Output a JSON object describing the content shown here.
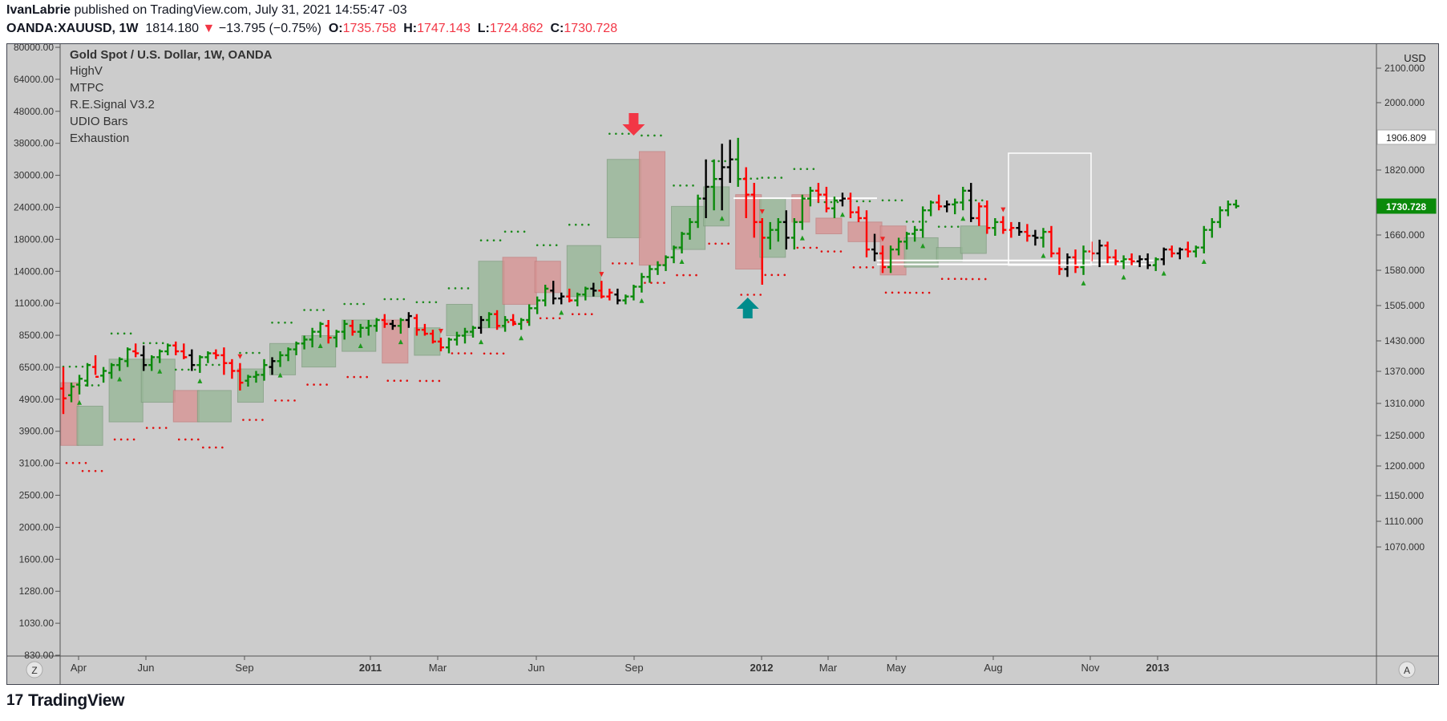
{
  "header": {
    "author": "IvanLabrie",
    "published_text": "published on TradingView.com, July 31, 2021 14:55:47 -03",
    "symbol": "OANDA:XAUUSD, 1W",
    "last_price": "1814.180",
    "change_arrow": "▼",
    "change": "−13.795 (−0.75%)",
    "o_label": "O:",
    "o_value": "1735.758",
    "h_label": "H:",
    "h_value": "1747.143",
    "l_label": "L:",
    "l_value": "1724.862",
    "c_label": "C:",
    "c_value": "1730.728"
  },
  "legend": {
    "title": "Gold Spot / U.S. Dollar, 1W, OANDA",
    "indicators": [
      "HighV",
      "MTPC",
      "R.E.Signal V3.2",
      "UDIO Bars",
      "Exhaustion"
    ]
  },
  "footer": {
    "brand": "TradingView",
    "brand_mark": "17"
  },
  "axis_buttons": {
    "left": "Z",
    "right": "A"
  },
  "colors": {
    "background": "#cccccc",
    "up": "#0a8a0a",
    "down": "#ff0000",
    "neutral": "#000000",
    "green_zone": "#98b898",
    "red_zone": "#d89494",
    "price_tag": "#0a8a0a",
    "sell_arrow": "#f23645",
    "buy_arrow": "#008c8c"
  },
  "chart_data": {
    "type": "ohlc",
    "title": "Gold Spot / U.S. Dollar, 1W, OANDA",
    "currency": "USD",
    "x_tick_labels": [
      "Apr",
      "Jun",
      "Sep",
      "2011",
      "Mar",
      "Jun",
      "Sep",
      "2012",
      "Mar",
      "May",
      "Aug",
      "Nov",
      "2013"
    ],
    "x_tick_bold": [
      "2011",
      "2012",
      "2013"
    ],
    "left_axis_labels": [
      "80000.00",
      "64000.00",
      "48000.00",
      "38000.00",
      "30000.00",
      "24000.00",
      "18000.00",
      "14000.00",
      "11000.00",
      "8500.00",
      "6500.00",
      "4900.00",
      "3900.00",
      "3100.00",
      "2500.00",
      "2000.00",
      "1600.00",
      "1280.00",
      "1030.00",
      "830.00"
    ],
    "right_axis_labels": [
      "2100.000",
      "2000.000",
      "1820.000",
      "1660.000",
      "1580.000",
      "1505.000",
      "1430.000",
      "1370.000",
      "1310.000",
      "1250.000",
      "1200.000",
      "1150.000",
      "1110.000",
      "1070.000"
    ],
    "price_tags": [
      {
        "label": "1906.809",
        "style": "white"
      },
      {
        "label": "1730.728",
        "style": "green"
      }
    ],
    "hlines": [
      {
        "y": 1751,
        "x_from": "2011-09",
        "x_to": "2012-01"
      },
      {
        "y": 1592,
        "x_from": "2012-01",
        "x_to": "2012-08"
      },
      {
        "y": 1582,
        "x_from": "2012-01",
        "x_to": "2012-08"
      }
    ],
    "bars": [
      [
        1265,
        1200,
        1320,
        1240,
        "d"
      ],
      [
        1248,
        1230,
        1280,
        1270,
        "u"
      ],
      [
        1275,
        1250,
        1300,
        1290,
        "u"
      ],
      [
        1285,
        1270,
        1330,
        1325,
        "u"
      ],
      [
        1320,
        1300,
        1350,
        1295,
        "d"
      ],
      [
        1298,
        1280,
        1320,
        1310,
        "u"
      ],
      [
        1305,
        1290,
        1330,
        1325,
        "u"
      ],
      [
        1325,
        1310,
        1345,
        1340,
        "u"
      ],
      [
        1335,
        1320,
        1370,
        1365,
        "u"
      ],
      [
        1360,
        1345,
        1380,
        1355,
        "d"
      ],
      [
        1350,
        1310,
        1375,
        1325,
        "n"
      ],
      [
        1325,
        1310,
        1350,
        1345,
        "u"
      ],
      [
        1345,
        1330,
        1365,
        1360,
        "u"
      ],
      [
        1360,
        1350,
        1380,
        1375,
        "u"
      ],
      [
        1375,
        1350,
        1385,
        1360,
        "d"
      ],
      [
        1360,
        1340,
        1380,
        1345,
        "d"
      ],
      [
        1350,
        1310,
        1365,
        1325,
        "n"
      ],
      [
        1325,
        1305,
        1350,
        1345,
        "u"
      ],
      [
        1345,
        1330,
        1360,
        1355,
        "u"
      ],
      [
        1355,
        1340,
        1365,
        1350,
        "d"
      ],
      [
        1350,
        1300,
        1370,
        1330,
        "d"
      ],
      [
        1330,
        1290,
        1340,
        1310,
        "d"
      ],
      [
        1310,
        1260,
        1330,
        1280,
        "d"
      ],
      [
        1285,
        1270,
        1300,
        1295,
        "u"
      ],
      [
        1295,
        1280,
        1310,
        1300,
        "u"
      ],
      [
        1300,
        1285,
        1340,
        1325,
        "u"
      ],
      [
        1320,
        1300,
        1345,
        1335,
        "n"
      ],
      [
        1335,
        1320,
        1360,
        1350,
        "u"
      ],
      [
        1350,
        1335,
        1370,
        1365,
        "u"
      ],
      [
        1365,
        1350,
        1385,
        1380,
        "u"
      ],
      [
        1380,
        1365,
        1400,
        1390,
        "u"
      ],
      [
        1390,
        1370,
        1420,
        1410,
        "u"
      ],
      [
        1410,
        1395,
        1435,
        1430,
        "u"
      ],
      [
        1425,
        1380,
        1440,
        1395,
        "d"
      ],
      [
        1395,
        1370,
        1415,
        1410,
        "u"
      ],
      [
        1410,
        1390,
        1440,
        1430,
        "u"
      ],
      [
        1425,
        1400,
        1440,
        1410,
        "d"
      ],
      [
        1410,
        1395,
        1430,
        1420,
        "u"
      ],
      [
        1420,
        1400,
        1440,
        1425,
        "u"
      ],
      [
        1425,
        1410,
        1445,
        1440,
        "u"
      ],
      [
        1440,
        1420,
        1455,
        1430,
        "d"
      ],
      [
        1430,
        1415,
        1440,
        1425,
        "n"
      ],
      [
        1425,
        1405,
        1445,
        1440,
        "u"
      ],
      [
        1440,
        1420,
        1460,
        1450,
        "n"
      ],
      [
        1445,
        1400,
        1455,
        1415,
        "d"
      ],
      [
        1415,
        1400,
        1430,
        1405,
        "d"
      ],
      [
        1405,
        1380,
        1415,
        1385,
        "d"
      ],
      [
        1385,
        1360,
        1395,
        1370,
        "d"
      ],
      [
        1370,
        1355,
        1395,
        1390,
        "u"
      ],
      [
        1390,
        1375,
        1410,
        1400,
        "u"
      ],
      [
        1400,
        1380,
        1420,
        1410,
        "u"
      ],
      [
        1410,
        1395,
        1425,
        1420,
        "u"
      ],
      [
        1420,
        1405,
        1450,
        1440,
        "n"
      ],
      [
        1440,
        1420,
        1460,
        1455,
        "u"
      ],
      [
        1455,
        1415,
        1465,
        1425,
        "d"
      ],
      [
        1425,
        1410,
        1450,
        1440,
        "u"
      ],
      [
        1440,
        1425,
        1455,
        1430,
        "d"
      ],
      [
        1430,
        1415,
        1445,
        1440,
        "u"
      ],
      [
        1440,
        1425,
        1480,
        1470,
        "u"
      ],
      [
        1470,
        1455,
        1500,
        1490,
        "u"
      ],
      [
        1490,
        1475,
        1530,
        1520,
        "u"
      ],
      [
        1515,
        1480,
        1540,
        1495,
        "n"
      ],
      [
        1495,
        1480,
        1510,
        1500,
        "n"
      ],
      [
        1500,
        1485,
        1520,
        1490,
        "d"
      ],
      [
        1490,
        1475,
        1510,
        1505,
        "u"
      ],
      [
        1505,
        1490,
        1525,
        1520,
        "u"
      ],
      [
        1520,
        1500,
        1535,
        1515,
        "n"
      ],
      [
        1515,
        1495,
        1540,
        1500,
        "d"
      ],
      [
        1500,
        1490,
        1520,
        1510,
        "d"
      ],
      [
        1505,
        1480,
        1520,
        1490,
        "n"
      ],
      [
        1490,
        1480,
        1505,
        1500,
        "u"
      ],
      [
        1500,
        1490,
        1530,
        1525,
        "u"
      ],
      [
        1525,
        1510,
        1560,
        1550,
        "u"
      ],
      [
        1550,
        1535,
        1580,
        1570,
        "u"
      ],
      [
        1570,
        1555,
        1590,
        1580,
        "u"
      ],
      [
        1580,
        1565,
        1605,
        1600,
        "u"
      ],
      [
        1600,
        1585,
        1630,
        1625,
        "u"
      ],
      [
        1625,
        1610,
        1665,
        1660,
        "u"
      ],
      [
        1660,
        1645,
        1700,
        1690,
        "u"
      ],
      [
        1690,
        1675,
        1760,
        1750,
        "u"
      ],
      [
        1750,
        1700,
        1850,
        1780,
        "n"
      ],
      [
        1780,
        1720,
        1850,
        1800,
        "u"
      ],
      [
        1800,
        1720,
        1890,
        1830,
        "n"
      ],
      [
        1830,
        1790,
        1900,
        1850,
        "n"
      ],
      [
        1850,
        1780,
        1905,
        1800,
        "u"
      ],
      [
        1800,
        1700,
        1830,
        1760,
        "d"
      ],
      [
        1760,
        1650,
        1790,
        1690,
        "d"
      ],
      [
        1690,
        1530,
        1700,
        1650,
        "d"
      ],
      [
        1650,
        1620,
        1690,
        1670,
        "u"
      ],
      [
        1670,
        1640,
        1700,
        1690,
        "u"
      ],
      [
        1690,
        1620,
        1720,
        1650,
        "n"
      ],
      [
        1650,
        1620,
        1700,
        1690,
        "u"
      ],
      [
        1690,
        1670,
        1760,
        1750,
        "u"
      ],
      [
        1750,
        1730,
        1780,
        1770,
        "u"
      ],
      [
        1770,
        1740,
        1790,
        1760,
        "d"
      ],
      [
        1760,
        1715,
        1780,
        1725,
        "d"
      ],
      [
        1725,
        1700,
        1755,
        1745,
        "u"
      ],
      [
        1745,
        1730,
        1765,
        1750,
        "n"
      ],
      [
        1750,
        1700,
        1765,
        1715,
        "d"
      ],
      [
        1715,
        1690,
        1730,
        1700,
        "d"
      ],
      [
        1700,
        1600,
        1720,
        1620,
        "d"
      ],
      [
        1620,
        1590,
        1660,
        1610,
        "n"
      ],
      [
        1610,
        1560,
        1630,
        1575,
        "d"
      ],
      [
        1575,
        1560,
        1630,
        1620,
        "u"
      ],
      [
        1620,
        1605,
        1650,
        1640,
        "u"
      ],
      [
        1640,
        1620,
        1665,
        1660,
        "u"
      ],
      [
        1660,
        1640,
        1680,
        1670,
        "u"
      ],
      [
        1670,
        1650,
        1730,
        1720,
        "u"
      ],
      [
        1720,
        1705,
        1745,
        1740,
        "u"
      ],
      [
        1740,
        1720,
        1760,
        1730,
        "d"
      ],
      [
        1730,
        1715,
        1745,
        1735,
        "n"
      ],
      [
        1735,
        1710,
        1750,
        1740,
        "u"
      ],
      [
        1740,
        1720,
        1780,
        1770,
        "u"
      ],
      [
        1770,
        1690,
        1790,
        1700,
        "n"
      ],
      [
        1700,
        1680,
        1740,
        1730,
        "d"
      ],
      [
        1730,
        1660,
        1745,
        1675,
        "d"
      ],
      [
        1675,
        1655,
        1700,
        1690,
        "u"
      ],
      [
        1690,
        1660,
        1705,
        1670,
        "d"
      ],
      [
        1670,
        1650,
        1690,
        1675,
        "d"
      ],
      [
        1675,
        1655,
        1690,
        1665,
        "n"
      ],
      [
        1665,
        1640,
        1685,
        1655,
        "d"
      ],
      [
        1655,
        1630,
        1670,
        1650,
        "n"
      ],
      [
        1650,
        1625,
        1675,
        1665,
        "u"
      ],
      [
        1665,
        1600,
        1680,
        1610,
        "d"
      ],
      [
        1610,
        1555,
        1625,
        1570,
        "d"
      ],
      [
        1570,
        1550,
        1610,
        1600,
        "n"
      ],
      [
        1600,
        1560,
        1620,
        1575,
        "d"
      ],
      [
        1575,
        1555,
        1630,
        1615,
        "u"
      ],
      [
        1615,
        1590,
        1640,
        1610,
        "d"
      ],
      [
        1610,
        1575,
        1645,
        1630,
        "n"
      ],
      [
        1630,
        1585,
        1640,
        1600,
        "d"
      ],
      [
        1600,
        1580,
        1620,
        1590,
        "d"
      ],
      [
        1590,
        1570,
        1605,
        1595,
        "u"
      ],
      [
        1595,
        1580,
        1610,
        1590,
        "d"
      ],
      [
        1590,
        1575,
        1605,
        1595,
        "n"
      ],
      [
        1595,
        1570,
        1610,
        1580,
        "n"
      ],
      [
        1580,
        1565,
        1600,
        1595,
        "u"
      ],
      [
        1595,
        1580,
        1625,
        1620,
        "n"
      ],
      [
        1620,
        1600,
        1630,
        1610,
        "d"
      ],
      [
        1610,
        1595,
        1625,
        1620,
        "n"
      ],
      [
        1620,
        1600,
        1640,
        1615,
        "d"
      ],
      [
        1615,
        1600,
        1630,
        1625,
        "u"
      ],
      [
        1625,
        1610,
        1680,
        1670,
        "u"
      ],
      [
        1670,
        1650,
        1700,
        1690,
        "u"
      ],
      [
        1690,
        1675,
        1730,
        1720,
        "u"
      ],
      [
        1720,
        1705,
        1745,
        1735,
        "u"
      ],
      [
        1735,
        1724.862,
        1747.143,
        1730.728,
        "u"
      ]
    ],
    "zones": [
      {
        "from": 0,
        "to": 1,
        "lo": 1120,
        "hi": 1280,
        "c": "r"
      },
      {
        "from": 2,
        "to": 4,
        "lo": 1120,
        "hi": 1220,
        "c": "g"
      },
      {
        "from": 6,
        "to": 9,
        "lo": 1180,
        "hi": 1340,
        "c": "g"
      },
      {
        "from": 10,
        "to": 13,
        "lo": 1230,
        "hi": 1340,
        "c": "g"
      },
      {
        "from": 14,
        "to": 16,
        "lo": 1180,
        "hi": 1260,
        "c": "r"
      },
      {
        "from": 17,
        "to": 20,
        "lo": 1180,
        "hi": 1260,
        "c": "g"
      },
      {
        "from": 22,
        "to": 24,
        "lo": 1230,
        "hi": 1315,
        "c": "g"
      },
      {
        "from": 26,
        "to": 28,
        "lo": 1300,
        "hi": 1380,
        "c": "g"
      },
      {
        "from": 30,
        "to": 33,
        "lo": 1320,
        "hi": 1400,
        "c": "g"
      },
      {
        "from": 35,
        "to": 38,
        "lo": 1360,
        "hi": 1440,
        "c": "g"
      },
      {
        "from": 40,
        "to": 42,
        "lo": 1330,
        "hi": 1440,
        "c": "r"
      },
      {
        "from": 44,
        "to": 46,
        "lo": 1350,
        "hi": 1420,
        "c": "g"
      },
      {
        "from": 48,
        "to": 50,
        "lo": 1400,
        "hi": 1480,
        "c": "g"
      },
      {
        "from": 52,
        "to": 54,
        "lo": 1420,
        "hi": 1590,
        "c": "g"
      },
      {
        "from": 55,
        "to": 58,
        "lo": 1480,
        "hi": 1600,
        "c": "r"
      },
      {
        "from": 59,
        "to": 61,
        "lo": 1510,
        "hi": 1590,
        "c": "r"
      },
      {
        "from": 63,
        "to": 66,
        "lo": 1500,
        "hi": 1630,
        "c": "g"
      },
      {
        "from": 68,
        "to": 71,
        "lo": 1650,
        "hi": 1850,
        "c": "g"
      },
      {
        "from": 72,
        "to": 74,
        "lo": 1580,
        "hi": 1870,
        "c": "r"
      },
      {
        "from": 76,
        "to": 79,
        "lo": 1620,
        "hi": 1730,
        "c": "g"
      },
      {
        "from": 80,
        "to": 82,
        "lo": 1680,
        "hi": 1780,
        "c": "g"
      },
      {
        "from": 84,
        "to": 86,
        "lo": 1570,
        "hi": 1760,
        "c": "r"
      },
      {
        "from": 87,
        "to": 89,
        "lo": 1600,
        "hi": 1750,
        "c": "g"
      },
      {
        "from": 91,
        "to": 92,
        "lo": 1690,
        "hi": 1760,
        "c": "r"
      },
      {
        "from": 94,
        "to": 96,
        "lo": 1660,
        "hi": 1700,
        "c": "r"
      },
      {
        "from": 98,
        "to": 101,
        "lo": 1640,
        "hi": 1690,
        "c": "r"
      },
      {
        "from": 102,
        "to": 104,
        "lo": 1555,
        "hi": 1680,
        "c": "r"
      },
      {
        "from": 105,
        "to": 108,
        "lo": 1575,
        "hi": 1650,
        "c": "g"
      },
      {
        "from": 109,
        "to": 111,
        "lo": 1590,
        "hi": 1625,
        "c": "g"
      },
      {
        "from": 112,
        "to": 114,
        "lo": 1610,
        "hi": 1680,
        "c": "g"
      }
    ],
    "annotations": [
      {
        "type": "sell_arrow",
        "bar": 72
      },
      {
        "type": "buy_arrow",
        "bar": 86
      },
      {
        "type": "white_box",
        "from_bar": 112,
        "to_bar": 123,
        "lo": 1580,
        "hi": 1906.809
      }
    ]
  }
}
